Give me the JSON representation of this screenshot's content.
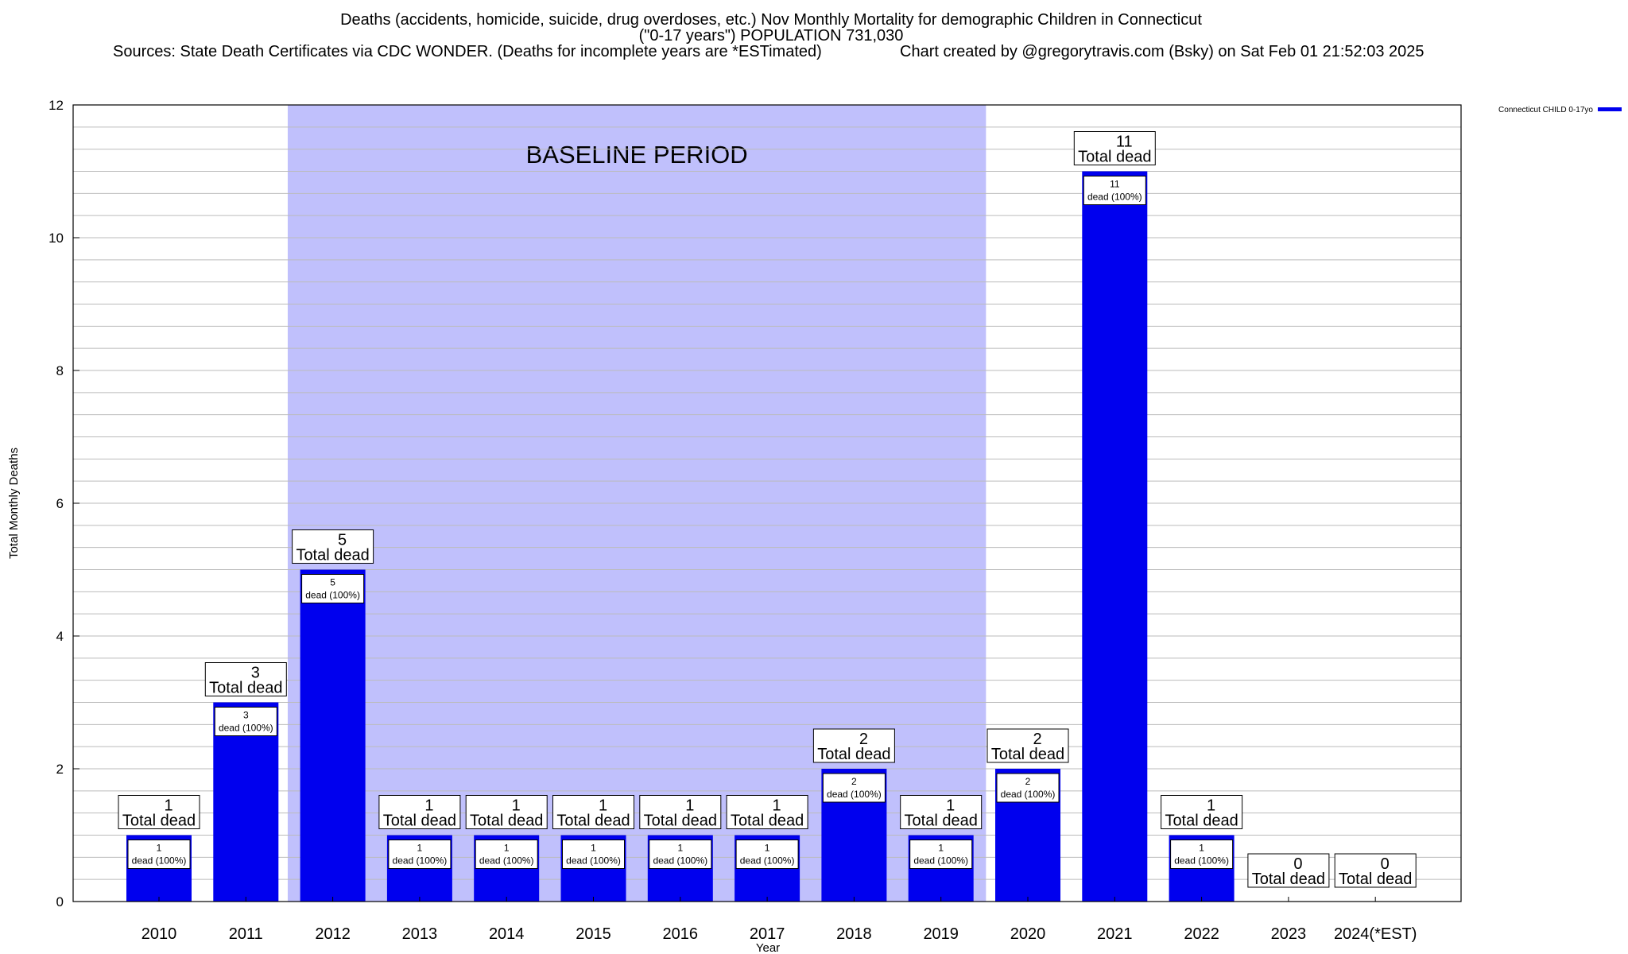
{
  "header": {
    "title": "Deaths (accidents, homicide, suicide, drug overdoses, etc.) Nov Monthly Mortality for demographic Children in Connecticut",
    "subtitle": "(\"0-17 years\") POPULATION 731,030",
    "sources": "Sources: State Death Certificates via CDC WONDER. (Deaths for incomplete years are *ESTimated)",
    "credit": "Chart created by @gregorytravis.com (Bsky) on Sat Feb 01 21:52:03 2025"
  },
  "chart_data": {
    "type": "bar",
    "categories": [
      "2010",
      "2011",
      "2012",
      "2013",
      "2014",
      "2015",
      "2016",
      "2017",
      "2018",
      "2019",
      "2020",
      "2021",
      "2022",
      "2023",
      "2024(*EST)"
    ],
    "series": [
      {
        "name": "Connecticut CHILD 0-17yo",
        "values": [
          1,
          3,
          5,
          1,
          1,
          1,
          1,
          1,
          2,
          1,
          2,
          11,
          1,
          0,
          0
        ]
      }
    ],
    "total_label_text": "Total dead",
    "inner_label_text": "dead (100%)",
    "xlabel": "Year",
    "ylabel": "Total Monthly Deaths",
    "ylim": [
      0,
      12
    ],
    "yticks": [
      0,
      2,
      4,
      6,
      8,
      10,
      12
    ],
    "grid": true,
    "legend_placement": "top-right",
    "baseline": {
      "label": "BASELINE PERIOD",
      "from": "2012",
      "to": "2019"
    },
    "colors": {
      "bar": "#0000ee",
      "baseline": "#c0c0fc",
      "grid": "#bbbbbb"
    }
  }
}
